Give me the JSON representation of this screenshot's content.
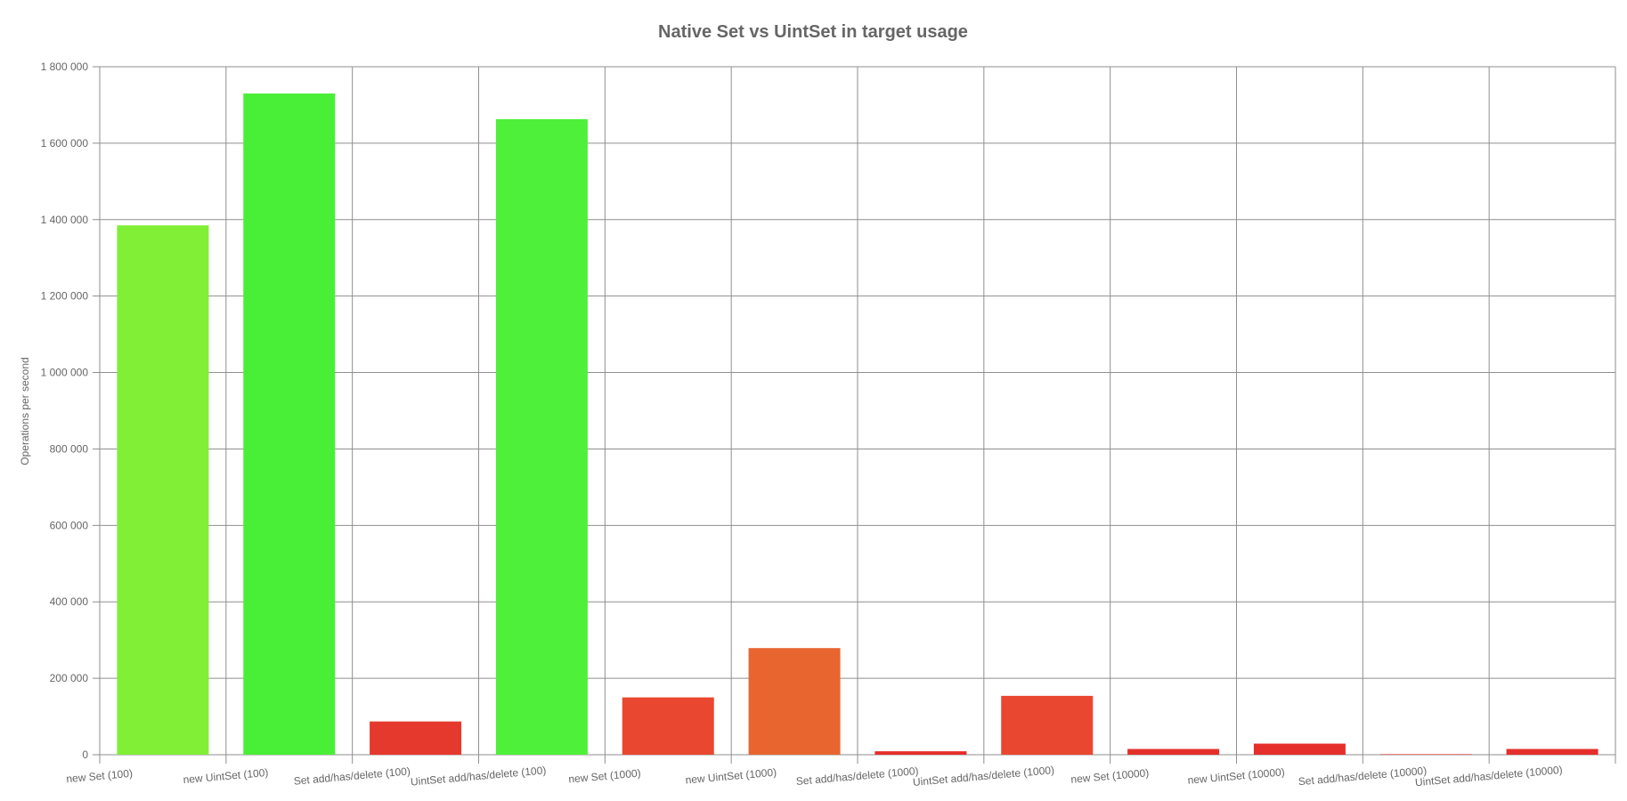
{
  "chart_data": {
    "type": "bar",
    "title": "Native Set vs UintSet in target usage",
    "xlabel": "",
    "ylabel": "Operations per second",
    "ylim": [
      0,
      1800000
    ],
    "y_ticks": [
      0,
      200000,
      400000,
      600000,
      800000,
      1000000,
      1200000,
      1400000,
      1600000,
      1800000
    ],
    "y_tick_labels": [
      "0",
      "200 000",
      "400 000",
      "600 000",
      "800 000",
      "1 000 000",
      "1 200 000",
      "1 400 000",
      "1 600 000",
      "1 800 000"
    ],
    "grid": true,
    "legend": "none",
    "categories": [
      "new Set (100)",
      "new UintSet (100)",
      "Set add/has/delete (100)",
      "UintSet add/has/delete (100)",
      "new Set (1000)",
      "new UintSet (1000)",
      "Set add/has/delete (1000)",
      "UintSet add/has/delete (1000)",
      "new Set (10000)",
      "new UintSet (10000)",
      "Set add/has/delete (10000)",
      "UintSet add/has/delete (10000)"
    ],
    "values": [
      1385000,
      1730000,
      87000,
      1663000,
      150000,
      279000,
      9000,
      154000,
      15000,
      29000,
      1000,
      15000
    ],
    "colors": [
      "#80ef36",
      "#48ef36",
      "#e6392e",
      "#4ff03a",
      "#e9472f",
      "#e86530",
      "#e52d29",
      "#e9472f",
      "#e42f2a",
      "#e42f2a",
      "#e33128",
      "#e42f2a"
    ],
    "grid_color": "#8f8f8f",
    "text_color": "#666666"
  }
}
